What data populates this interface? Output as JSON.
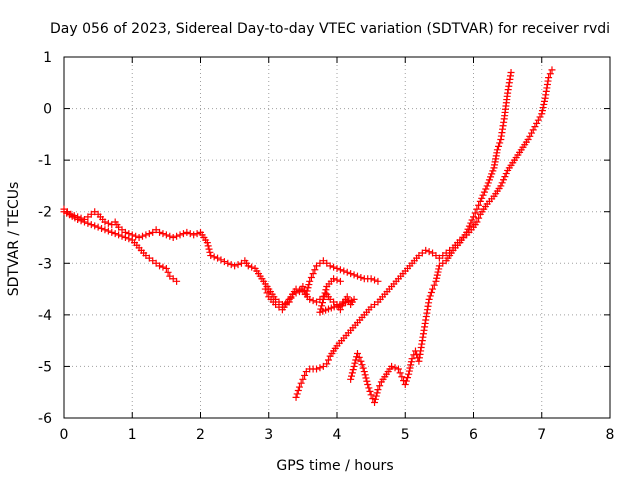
{
  "chart_data": {
    "type": "scatter",
    "title": "Day 056 of 2023, Sidereal Day-to-day VTEC variation (SDTVAR) for receiver rvdi",
    "xlabel": "GPS time / hours",
    "ylabel": "SDTVAR / TECUs",
    "xlim": [
      0,
      8
    ],
    "ylim": [
      -6,
      1
    ],
    "xticks": [
      0,
      1,
      2,
      3,
      4,
      5,
      6,
      7,
      8
    ],
    "yticks": [
      -6,
      -5,
      -4,
      -3,
      -2,
      -1,
      0,
      1
    ],
    "xtick_labels": [
      "0",
      "1",
      "2",
      "3",
      "4",
      "5",
      "6",
      "7",
      "8"
    ],
    "ytick_labels": [
      "-6",
      "-5",
      "-4",
      "-3",
      "-2",
      "-1",
      "0",
      "1"
    ],
    "grid": true,
    "legend": "none",
    "marker": "+",
    "marker_color": "#ff0000",
    "series": [
      {
        "values": [
          [
            0.0,
            -1.95
          ],
          [
            0.1,
            -2.05
          ],
          [
            0.2,
            -2.1
          ],
          [
            0.3,
            -2.15
          ],
          [
            0.4,
            -2.05
          ],
          [
            0.45,
            -2.0
          ],
          [
            0.5,
            -2.05
          ],
          [
            0.6,
            -2.2
          ],
          [
            0.7,
            -2.25
          ],
          [
            0.75,
            -2.2
          ],
          [
            0.8,
            -2.3
          ],
          [
            0.9,
            -2.4
          ],
          [
            1.0,
            -2.45
          ],
          [
            1.1,
            -2.5
          ],
          [
            1.2,
            -2.45
          ],
          [
            1.3,
            -2.4
          ],
          [
            1.35,
            -2.35
          ],
          [
            1.4,
            -2.4
          ],
          [
            1.5,
            -2.45
          ],
          [
            1.6,
            -2.5
          ],
          [
            1.7,
            -2.45
          ],
          [
            1.8,
            -2.4
          ],
          [
            1.9,
            -2.45
          ],
          [
            2.0,
            -2.4
          ],
          [
            2.05,
            -2.5
          ],
          [
            2.1,
            -2.6
          ],
          [
            2.15,
            -2.85
          ],
          [
            2.25,
            -2.9
          ],
          [
            2.4,
            -3.0
          ],
          [
            2.5,
            -3.05
          ],
          [
            2.6,
            -3.0
          ],
          [
            2.65,
            -2.95
          ],
          [
            2.7,
            -3.05
          ],
          [
            2.8,
            -3.1
          ],
          [
            2.9,
            -3.3
          ],
          [
            3.0,
            -3.5
          ],
          [
            3.05,
            -3.6
          ],
          [
            3.1,
            -3.7
          ],
          [
            3.2,
            -3.8
          ],
          [
            3.3,
            -3.75
          ],
          [
            3.35,
            -3.6
          ],
          [
            3.45,
            -3.55
          ],
          [
            3.5,
            -3.45
          ],
          [
            3.55,
            -3.6
          ],
          [
            3.6,
            -3.35
          ],
          [
            3.65,
            -3.2
          ],
          [
            3.7,
            -3.05
          ],
          [
            3.75,
            -3.0
          ],
          [
            3.8,
            -2.95
          ],
          [
            3.9,
            -3.05
          ],
          [
            4.0,
            -3.1
          ],
          [
            4.1,
            -3.15
          ],
          [
            4.2,
            -3.2
          ],
          [
            4.3,
            -3.25
          ],
          [
            4.4,
            -3.3
          ],
          [
            4.5,
            -3.3
          ],
          [
            4.6,
            -3.35
          ]
        ]
      },
      {
        "values": [
          [
            0.0,
            -2.0
          ],
          [
            0.2,
            -2.15
          ],
          [
            0.4,
            -2.25
          ],
          [
            0.6,
            -2.35
          ],
          [
            0.8,
            -2.45
          ],
          [
            1.0,
            -2.55
          ],
          [
            1.1,
            -2.7
          ],
          [
            1.2,
            -2.85
          ],
          [
            1.3,
            -2.95
          ],
          [
            1.4,
            -3.05
          ],
          [
            1.5,
            -3.1
          ],
          [
            1.55,
            -3.25
          ],
          [
            1.6,
            -3.3
          ],
          [
            1.65,
            -3.35
          ]
        ]
      },
      {
        "values": [
          [
            2.95,
            -3.5
          ],
          [
            3.0,
            -3.65
          ],
          [
            3.1,
            -3.8
          ],
          [
            3.2,
            -3.9
          ],
          [
            3.3,
            -3.7
          ],
          [
            3.4,
            -3.5
          ],
          [
            3.5,
            -3.55
          ],
          [
            3.6,
            -3.7
          ],
          [
            3.7,
            -3.75
          ],
          [
            3.8,
            -3.65
          ],
          [
            3.85,
            -3.6
          ],
          [
            3.9,
            -3.7
          ],
          [
            4.0,
            -3.8
          ],
          [
            4.05,
            -3.9
          ],
          [
            4.1,
            -3.75
          ],
          [
            4.15,
            -3.65
          ],
          [
            4.2,
            -3.8
          ],
          [
            4.25,
            -3.7
          ],
          [
            3.75,
            -3.95
          ],
          [
            3.85,
            -3.45
          ],
          [
            3.95,
            -3.3
          ],
          [
            4.05,
            -3.35
          ]
        ]
      },
      {
        "values": [
          [
            3.4,
            -5.6
          ],
          [
            3.45,
            -5.4
          ],
          [
            3.5,
            -5.25
          ],
          [
            3.55,
            -5.1
          ],
          [
            3.6,
            -5.05
          ],
          [
            3.7,
            -5.05
          ],
          [
            3.8,
            -5.0
          ],
          [
            3.85,
            -4.95
          ],
          [
            3.9,
            -4.8
          ],
          [
            4.0,
            -4.6
          ],
          [
            4.1,
            -4.45
          ],
          [
            4.2,
            -4.3
          ],
          [
            4.3,
            -4.15
          ],
          [
            4.4,
            -4.0
          ],
          [
            4.5,
            -3.85
          ],
          [
            4.6,
            -3.75
          ],
          [
            4.7,
            -3.6
          ],
          [
            4.8,
            -3.45
          ],
          [
            4.9,
            -3.3
          ],
          [
            5.0,
            -3.15
          ],
          [
            5.1,
            -3.0
          ],
          [
            5.2,
            -2.85
          ],
          [
            5.3,
            -2.75
          ],
          [
            5.4,
            -2.8
          ],
          [
            5.5,
            -2.9
          ],
          [
            5.6,
            -2.8
          ],
          [
            5.7,
            -2.7
          ],
          [
            5.8,
            -2.55
          ],
          [
            5.9,
            -2.45
          ],
          [
            6.0,
            -2.3
          ],
          [
            6.05,
            -2.2
          ],
          [
            6.1,
            -2.05
          ],
          [
            6.15,
            -1.95
          ],
          [
            6.2,
            -1.85
          ],
          [
            6.3,
            -1.7
          ],
          [
            6.4,
            -1.5
          ],
          [
            6.5,
            -1.2
          ],
          [
            6.6,
            -1.0
          ],
          [
            6.7,
            -0.8
          ],
          [
            6.8,
            -0.6
          ],
          [
            6.9,
            -0.35
          ],
          [
            7.0,
            -0.1
          ],
          [
            7.05,
            0.2
          ],
          [
            7.1,
            0.6
          ],
          [
            7.15,
            0.75
          ]
        ]
      },
      {
        "values": [
          [
            4.2,
            -5.25
          ],
          [
            4.25,
            -5.0
          ],
          [
            4.3,
            -4.75
          ],
          [
            4.35,
            -4.9
          ],
          [
            4.4,
            -5.1
          ],
          [
            4.45,
            -5.35
          ],
          [
            4.5,
            -5.55
          ],
          [
            4.55,
            -5.7
          ],
          [
            4.6,
            -5.45
          ],
          [
            4.65,
            -5.3
          ],
          [
            4.7,
            -5.2
          ],
          [
            4.8,
            -5.0
          ],
          [
            4.9,
            -5.05
          ],
          [
            4.95,
            -5.2
          ],
          [
            5.0,
            -5.35
          ],
          [
            5.05,
            -5.15
          ],
          [
            5.1,
            -4.85
          ],
          [
            5.15,
            -4.7
          ],
          [
            5.2,
            -4.9
          ],
          [
            5.25,
            -4.5
          ],
          [
            5.3,
            -4.1
          ],
          [
            5.35,
            -3.7
          ],
          [
            5.4,
            -3.5
          ],
          [
            5.45,
            -3.35
          ],
          [
            5.5,
            -3.05
          ],
          [
            5.6,
            -2.95
          ],
          [
            5.7,
            -2.75
          ],
          [
            5.8,
            -2.6
          ],
          [
            5.9,
            -2.4
          ],
          [
            6.0,
            -2.1
          ],
          [
            6.05,
            -1.95
          ],
          [
            6.1,
            -1.8
          ],
          [
            6.2,
            -1.5
          ],
          [
            6.3,
            -1.15
          ],
          [
            6.35,
            -0.8
          ],
          [
            6.4,
            -0.6
          ],
          [
            6.45,
            -0.2
          ],
          [
            6.5,
            0.3
          ],
          [
            6.55,
            0.7
          ]
        ]
      }
    ]
  }
}
